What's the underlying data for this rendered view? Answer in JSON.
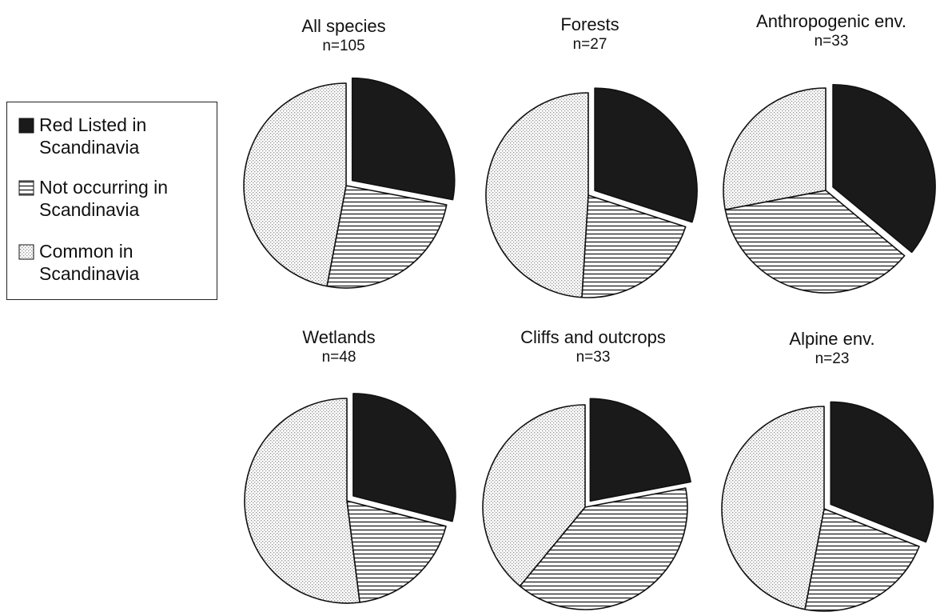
{
  "chart_data": {
    "type": "pie",
    "legend": {
      "placement": "left",
      "entries": [
        {
          "key": "red",
          "lines": [
            "Red Listed in",
            "Scandinavia"
          ],
          "pattern": "solid",
          "color": "#1a1a1a"
        },
        {
          "key": "not",
          "lines": [
            "Not occurring in",
            "Scandinavia"
          ],
          "pattern": "horizontal-hatch",
          "color": "#2a2a2a"
        },
        {
          "key": "common",
          "lines": [
            "Common in",
            "Scandinavia"
          ],
          "pattern": "dotted",
          "color": "#bdbdbd"
        }
      ]
    },
    "pies": [
      {
        "title": "All species",
        "n_label": "n=105",
        "values": [
          {
            "key": "red",
            "value": 28
          },
          {
            "key": "not",
            "value": 25
          },
          {
            "key": "common",
            "value": 47
          }
        ]
      },
      {
        "title": "Forests",
        "n_label": "n=27",
        "values": [
          {
            "key": "red",
            "value": 30
          },
          {
            "key": "not",
            "value": 21
          },
          {
            "key": "common",
            "value": 49
          }
        ]
      },
      {
        "title": "Anthropogenic env.",
        "n_label": "n=33",
        "values": [
          {
            "key": "red",
            "value": 36
          },
          {
            "key": "not",
            "value": 36
          },
          {
            "key": "common",
            "value": 28
          }
        ]
      },
      {
        "title": "Wetlands",
        "n_label": "n=48",
        "values": [
          {
            "key": "red",
            "value": 29
          },
          {
            "key": "not",
            "value": 19
          },
          {
            "key": "common",
            "value": 52
          }
        ]
      },
      {
        "title": "Cliffs and outcrops",
        "n_label": "n=33",
        "values": [
          {
            "key": "red",
            "value": 22
          },
          {
            "key": "not",
            "value": 39
          },
          {
            "key": "common",
            "value": 39
          }
        ]
      },
      {
        "title": "Alpine env.",
        "n_label": "n=23",
        "values": [
          {
            "key": "red",
            "value": 31
          },
          {
            "key": "not",
            "value": 22
          },
          {
            "key": "common",
            "value": 47
          }
        ]
      }
    ]
  }
}
